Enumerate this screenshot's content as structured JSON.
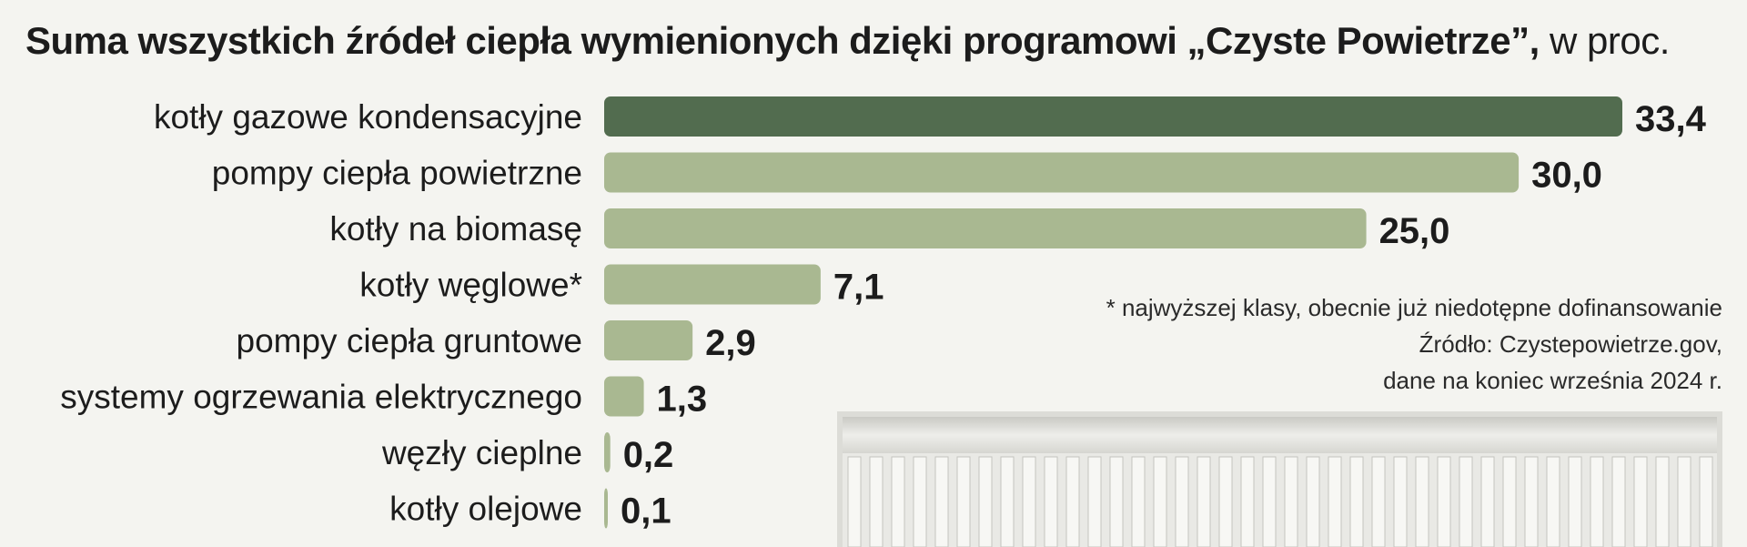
{
  "title": {
    "main": "Suma wszystkich źródeł ciepła wymienionych dzięki programowi „Czyste Powietrze”,",
    "unit": " w proc."
  },
  "notes": {
    "footnote": "* najwyższej klasy, obecnie już niedotępne dofinansowanie",
    "source": "Źródło: Czystepowietrze.gov,",
    "date": "dane na koniec września 2024 r."
  },
  "colors": {
    "highlight": "#526c4f",
    "bar": "#a9b891",
    "background": "#f4f4f0"
  },
  "illustration": "radiator",
  "chart_data": {
    "type": "bar",
    "orientation": "horizontal",
    "title": "Suma wszystkich źródeł ciepła wymienionych dzięki programowi „Czyste Powietrze”, w proc.",
    "categories": [
      "kotły gazowe kondensacyjne",
      "pompy ciepła powietrzne",
      "kotły na biomasę",
      "kotły węglowe*",
      "pompy ciepła gruntowe",
      "systemy ogrzewania elektrycznego",
      "węzły cieplne",
      "kotły olejowe"
    ],
    "values": [
      33.4,
      30.0,
      25.0,
      7.1,
      2.9,
      1.3,
      0.2,
      0.1
    ],
    "value_labels": [
      "33,4",
      "30,0",
      "25,0",
      "7,1",
      "2,9",
      "1,3",
      "0,2",
      "0,1"
    ],
    "highlight_index": 0,
    "xlim": [
      0,
      33.4
    ],
    "grid": false,
    "legend": "none"
  }
}
